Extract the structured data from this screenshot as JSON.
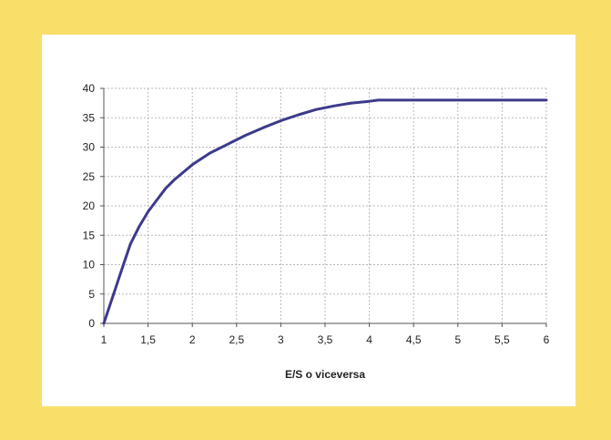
{
  "chart_data": {
    "type": "line",
    "title": "",
    "xlabel": "E/S o viceversa",
    "ylabel": "",
    "xlim": [
      1,
      6
    ],
    "ylim": [
      0,
      40
    ],
    "x_ticks": [
      "1",
      "1,5",
      "2",
      "2,5",
      "3",
      "3,5",
      "4",
      "4,5",
      "5",
      "5,5",
      "6"
    ],
    "y_ticks": [
      "0",
      "5",
      "10",
      "15",
      "20",
      "25",
      "30",
      "35",
      "40"
    ],
    "grid": true,
    "legend": "none",
    "colors": {
      "frame": "#f7df6a",
      "line": "#3d3a8c",
      "grid": "#b8b8b8"
    },
    "series": [
      {
        "x": [
          1,
          1.1,
          1.2,
          1.3,
          1.4,
          1.5,
          1.6,
          1.7,
          1.8,
          2,
          2.2,
          2.4,
          2.6,
          2.8,
          3,
          3.2,
          3.4,
          3.6,
          3.8,
          4,
          4.1,
          4.5,
          5,
          5.5,
          6
        ],
        "y": [
          0,
          4.5,
          9,
          13.5,
          16.5,
          19,
          21,
          23,
          24.5,
          27,
          29,
          30.5,
          32,
          33.3,
          34.5,
          35.5,
          36.4,
          37,
          37.5,
          37.8,
          38,
          38,
          38,
          38,
          38
        ]
      }
    ]
  }
}
